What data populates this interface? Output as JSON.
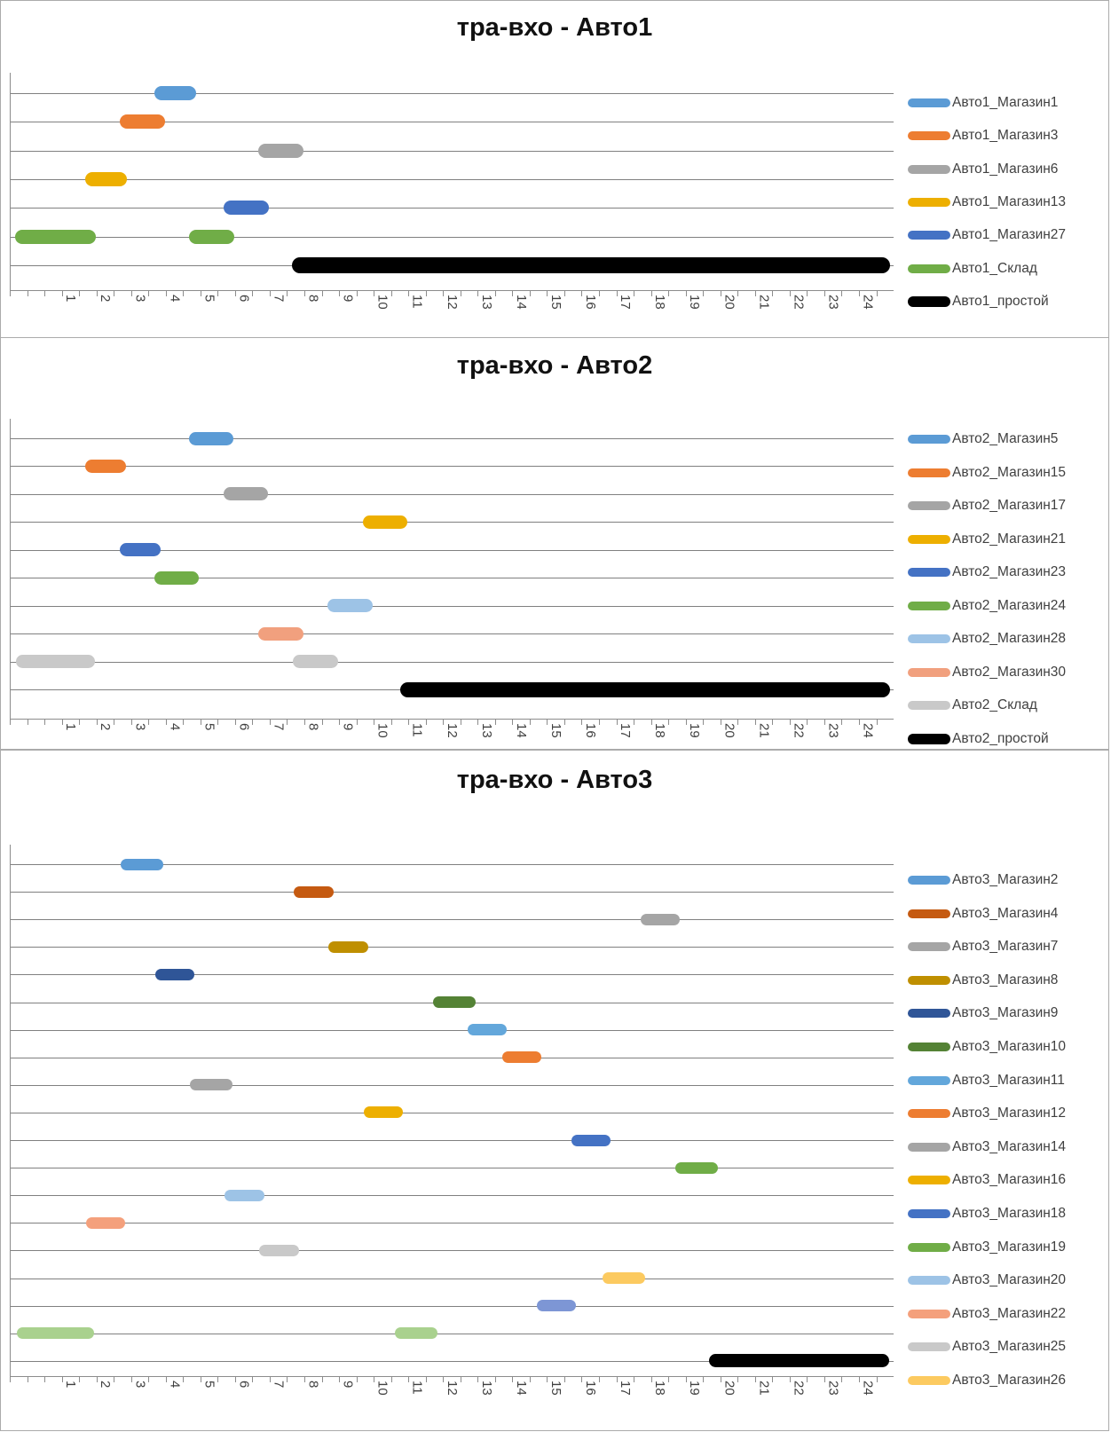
{
  "x_axis": {
    "tick_labels": [
      "1",
      "2",
      "3",
      "4",
      "5",
      "6",
      "7",
      "8",
      "9",
      "10",
      "11",
      "12",
      "13",
      "14",
      "15",
      "16",
      "17",
      "18",
      "19",
      "20",
      "21",
      "22",
      "23",
      "24"
    ],
    "range_min": -0.77,
    "range_max": 24.73,
    "minor_tick_step": 0.5
  },
  "chart_data": [
    {
      "type": "bar",
      "orientation": "horizontal_interval",
      "title": "тра-вхо - Авто1",
      "xlim": [
        -0.77,
        24.73
      ],
      "grid": true,
      "legend_position": "right",
      "series": [
        {
          "name": "Авто1_Магазин1",
          "color": "#5B9BD5",
          "in_legend": true,
          "segments": [
            [
              3.6,
              4.4
            ]
          ]
        },
        {
          "name": "Авто1_Магазин3",
          "color": "#ED7D31",
          "in_legend": true,
          "segments": [
            [
              2.6,
              3.5
            ]
          ]
        },
        {
          "name": "Авто1_Магазин6",
          "color": "#A5A5A5",
          "in_legend": true,
          "segments": [
            [
              6.6,
              7.5
            ]
          ]
        },
        {
          "name": "Авто1_Магазин13",
          "color": "#EDAF00",
          "in_legend": true,
          "segments": [
            [
              1.6,
              2.4
            ]
          ]
        },
        {
          "name": "Авто1_Магазин27",
          "color": "#4472C4",
          "in_legend": true,
          "segments": [
            [
              5.6,
              6.5
            ]
          ]
        },
        {
          "name": "Авто1_Склад",
          "color": "#70AD47",
          "in_legend": true,
          "segments": [
            [
              -0.4,
              1.5
            ],
            [
              4.6,
              5.5
            ]
          ]
        },
        {
          "name": "Авто1_простой",
          "color": "#000000",
          "in_legend": true,
          "thick": true,
          "segments": [
            [
              7.6,
              24.4
            ]
          ]
        }
      ]
    },
    {
      "type": "bar",
      "orientation": "horizontal_interval",
      "title": "тра-вхо - Авто2",
      "xlim": [
        -0.77,
        24.73
      ],
      "grid": true,
      "legend_position": "right",
      "series": [
        {
          "name": "Авто2_Магазин5",
          "color": "#5B9BD5",
          "in_legend": true,
          "segments": [
            [
              4.6,
              5.5
            ]
          ]
        },
        {
          "name": "Авто2_Магазин15",
          "color": "#ED7D31",
          "in_legend": true,
          "segments": [
            [
              1.6,
              2.4
            ]
          ]
        },
        {
          "name": "Авто2_Магазин17",
          "color": "#A5A5A5",
          "in_legend": true,
          "segments": [
            [
              5.6,
              6.5
            ]
          ]
        },
        {
          "name": "Авто2_Магазин21",
          "color": "#EDAF00",
          "in_legend": true,
          "segments": [
            [
              9.6,
              10.5
            ]
          ]
        },
        {
          "name": "Авто2_Магазин23",
          "color": "#4472C4",
          "in_legend": true,
          "segments": [
            [
              2.6,
              3.4
            ]
          ]
        },
        {
          "name": "Авто2_Магазин24",
          "color": "#70AD47",
          "in_legend": true,
          "segments": [
            [
              3.6,
              4.5
            ]
          ]
        },
        {
          "name": "Авто2_Магазин28",
          "color": "#9DC3E6",
          "in_legend": true,
          "segments": [
            [
              8.6,
              9.5
            ]
          ]
        },
        {
          "name": "Авто2_Магазин30",
          "color": "#F1A07E",
          "in_legend": true,
          "segments": [
            [
              6.6,
              7.5
            ]
          ]
        },
        {
          "name": "Авто2_Склад",
          "color": "#C9C9C9",
          "in_legend": true,
          "segments": [
            [
              -0.4,
              1.5
            ],
            [
              7.6,
              8.5
            ]
          ]
        },
        {
          "name": "Авто2_простой",
          "color": "#000000",
          "in_legend": true,
          "thick": true,
          "segments": [
            [
              10.7,
              24.4
            ]
          ]
        }
      ]
    },
    {
      "type": "bar",
      "orientation": "horizontal_interval",
      "title": "тра-вхо - Авто3",
      "xlim": [
        -0.77,
        24.73
      ],
      "grid": true,
      "legend_position": "right",
      "series": [
        {
          "name": "Авто3_Магазин2",
          "color": "#5B9BD5",
          "in_legend": true,
          "segments": [
            [
              2.6,
              3.5
            ]
          ]
        },
        {
          "name": "Авто3_Магазин4",
          "color": "#C55A11",
          "in_legend": true,
          "segments": [
            [
              7.6,
              8.4
            ]
          ]
        },
        {
          "name": "Авто3_Магазин7",
          "color": "#A5A5A5",
          "in_legend": true,
          "segments": [
            [
              17.6,
              18.4
            ]
          ]
        },
        {
          "name": "Авто3_Магазин8",
          "color": "#BF8F00",
          "in_legend": true,
          "segments": [
            [
              8.6,
              9.4
            ]
          ]
        },
        {
          "name": "Авто3_Магазин9",
          "color": "#2F5597",
          "in_legend": true,
          "segments": [
            [
              3.6,
              4.4
            ]
          ]
        },
        {
          "name": "Авто3_Магазин10",
          "color": "#548235",
          "in_legend": true,
          "segments": [
            [
              11.6,
              12.5
            ]
          ]
        },
        {
          "name": "Авто3_Магазин11",
          "color": "#63A7DB",
          "in_legend": true,
          "segments": [
            [
              12.6,
              13.4
            ]
          ]
        },
        {
          "name": "Авто3_Магазин12",
          "color": "#ED7D31",
          "in_legend": true,
          "segments": [
            [
              13.6,
              14.4
            ]
          ]
        },
        {
          "name": "Авто3_Магазин14",
          "color": "#A5A5A5",
          "in_legend": true,
          "segments": [
            [
              4.6,
              5.5
            ]
          ]
        },
        {
          "name": "Авто3_Магазин16",
          "color": "#EDAF00",
          "in_legend": true,
          "segments": [
            [
              9.6,
              10.4
            ]
          ]
        },
        {
          "name": "Авто3_Магазин18",
          "color": "#4472C4",
          "in_legend": true,
          "segments": [
            [
              15.6,
              16.4
            ]
          ]
        },
        {
          "name": "Авто3_Магазин19",
          "color": "#70AD47",
          "in_legend": true,
          "segments": [
            [
              18.6,
              19.5
            ]
          ]
        },
        {
          "name": "Авто3_Магазин20",
          "color": "#9DC3E6",
          "in_legend": true,
          "segments": [
            [
              5.6,
              6.4
            ]
          ]
        },
        {
          "name": "Авто3_Магазин22",
          "color": "#F4A07C",
          "in_legend": true,
          "segments": [
            [
              1.6,
              2.4
            ]
          ]
        },
        {
          "name": "Авто3_Магазин25",
          "color": "#C9C9C9",
          "in_legend": true,
          "segments": [
            [
              6.6,
              7.4
            ]
          ]
        },
        {
          "name": "Авто3_Магазин26",
          "color": "#FCCA60",
          "in_legend": true,
          "segments": [
            [
              16.5,
              17.4
            ]
          ]
        },
        {
          "name": "",
          "color": "#7D96D5",
          "in_legend": false,
          "segments": [
            [
              14.6,
              15.4
            ]
          ]
        },
        {
          "name": "",
          "color": "#A9D18E",
          "in_legend": false,
          "segments": [
            [
              -0.4,
              1.5
            ],
            [
              10.5,
              11.4
            ]
          ]
        },
        {
          "name": "",
          "color": "#000000",
          "in_legend": false,
          "thick": true,
          "segments": [
            [
              19.6,
              24.4
            ]
          ]
        }
      ]
    }
  ]
}
